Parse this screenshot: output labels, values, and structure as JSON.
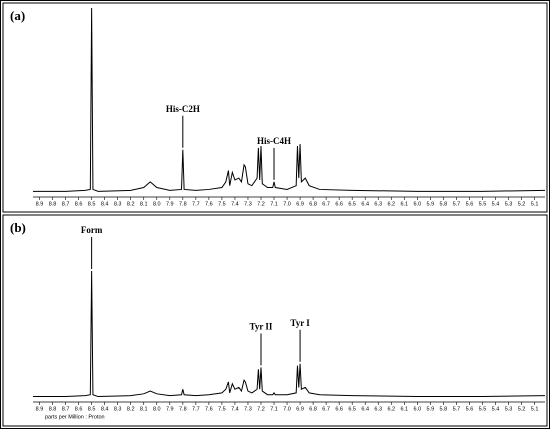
{
  "chart_data": [
    {
      "type": "line",
      "panel_label": "(a)",
      "color": "#000000",
      "x": [
        8.95,
        8.7,
        8.55,
        8.51,
        8.5,
        8.49,
        8.45,
        8.2,
        8.1,
        8.05,
        8.0,
        7.9,
        7.81,
        7.8,
        7.79,
        7.7,
        7.6,
        7.5,
        7.47,
        7.45,
        7.44,
        7.42,
        7.4,
        7.37,
        7.35,
        7.33,
        7.32,
        7.3,
        7.27,
        7.23,
        7.22,
        7.21,
        7.2,
        7.19,
        7.15,
        7.11,
        7.1,
        7.09,
        7.0,
        6.93,
        6.92,
        6.91,
        6.9,
        6.89,
        6.86,
        6.83,
        6.75,
        6.5,
        6.0,
        5.5,
        5.02
      ],
      "values": [
        3,
        3,
        3.5,
        4,
        100,
        4,
        3,
        3.5,
        5,
        8,
        5,
        3.5,
        4,
        25,
        4,
        3.5,
        4,
        5,
        8,
        14,
        6,
        13,
        9,
        10,
        8,
        17,
        16,
        7,
        6,
        10,
        26,
        9,
        27,
        7,
        5,
        5,
        8,
        5,
        4,
        6,
        27,
        10,
        28,
        8,
        10,
        6,
        4,
        3.5,
        3,
        3,
        3.5
      ],
      "xlim": [
        8.95,
        5.02
      ],
      "ylim": [
        0,
        100
      ],
      "xticks": [
        8.9,
        8.8,
        8.7,
        8.6,
        8.5,
        8.4,
        8.3,
        8.2,
        8.1,
        {
          "value": 8.0,
          "label": "8.0"
        },
        7.9,
        7.8,
        7.7,
        7.6,
        7.5,
        7.4,
        7.3,
        7.2,
        7.1,
        {
          "value": 7.0,
          "label": "7.0"
        },
        6.9,
        6.8,
        6.7,
        6.6,
        6.5,
        6.4,
        6.3,
        6.2,
        6.1,
        {
          "value": 6.0,
          "label": "6.0"
        },
        5.9,
        5.8,
        5.7,
        5.6,
        5.5,
        5.4,
        5.3,
        5.2,
        5.1
      ],
      "annotations": [
        {
          "text": "His-C2H",
          "x": 7.8
        },
        {
          "text": "His-C4H",
          "x": 7.1
        }
      ]
    },
    {
      "type": "line",
      "panel_label": "(b)",
      "color": "#000000",
      "xlabel": "parts per Million : Proton",
      "x": [
        8.95,
        8.7,
        8.55,
        8.51,
        8.5,
        8.49,
        8.45,
        8.2,
        8.1,
        8.05,
        8.0,
        7.9,
        7.81,
        7.8,
        7.79,
        7.7,
        7.6,
        7.5,
        7.47,
        7.45,
        7.44,
        7.42,
        7.4,
        7.37,
        7.35,
        7.33,
        7.32,
        7.3,
        7.27,
        7.23,
        7.22,
        7.21,
        7.2,
        7.19,
        7.15,
        7.11,
        7.1,
        7.09,
        7.0,
        6.93,
        6.92,
        6.91,
        6.9,
        6.89,
        6.86,
        6.83,
        6.75,
        6.5,
        6.0,
        5.5,
        5.02
      ],
      "values": [
        3,
        3,
        3.5,
        4,
        72,
        4,
        3,
        3.5,
        4.5,
        6,
        4.5,
        3.5,
        4,
        7,
        4,
        3.5,
        4,
        5,
        7,
        11,
        5,
        10,
        7,
        8,
        6,
        12,
        11,
        6,
        5,
        7,
        18,
        7,
        19,
        6,
        4,
        4,
        5,
        4,
        4,
        5,
        20,
        8,
        21,
        7,
        8,
        5,
        4,
        3.5,
        3,
        3,
        3.5
      ],
      "xlim": [
        8.95,
        5.02
      ],
      "ylim": [
        0,
        100
      ],
      "xticks": [
        8.9,
        8.8,
        8.7,
        8.6,
        8.5,
        8.4,
        8.3,
        8.2,
        8.1,
        {
          "value": 8.0,
          "label": "8.0"
        },
        7.9,
        7.8,
        7.7,
        7.6,
        7.5,
        7.4,
        7.3,
        7.2,
        7.1,
        {
          "value": 7.0,
          "label": "7.0"
        },
        6.9,
        6.8,
        6.7,
        6.6,
        6.5,
        6.4,
        6.3,
        6.2,
        6.1,
        {
          "value": 6.0,
          "label": "6.0"
        },
        5.9,
        5.8,
        5.7,
        5.6,
        5.5,
        5.4,
        5.3,
        5.2,
        5.1
      ],
      "annotations": [
        {
          "text": "Form",
          "x": 8.5
        },
        {
          "text": "Tyr II",
          "x": 7.2
        },
        {
          "text": "Tyr I",
          "x": 6.9
        }
      ]
    }
  ]
}
